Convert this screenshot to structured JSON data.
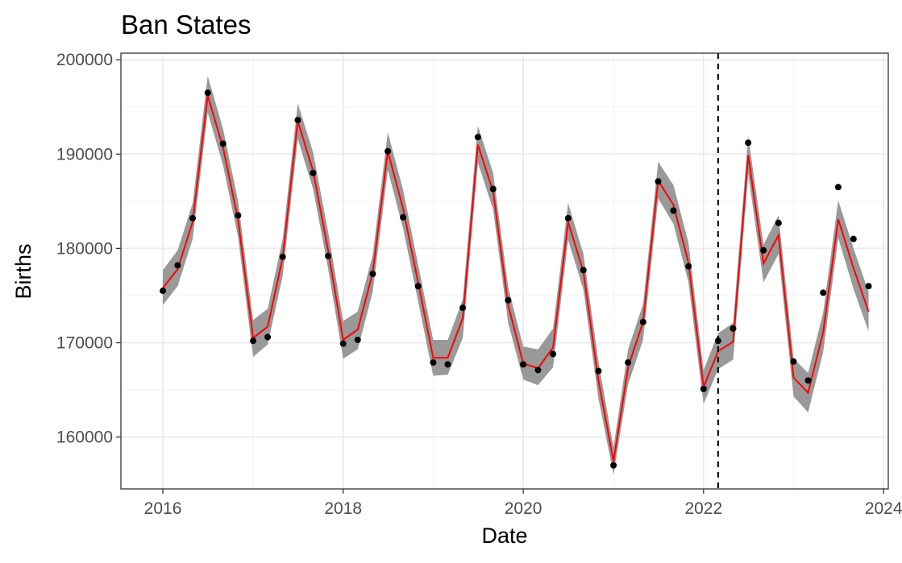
{
  "chart_data": {
    "type": "line",
    "title": "Ban States",
    "xlabel": "Date",
    "ylabel": "Births",
    "x_ticks": [
      "2016",
      "2018",
      "2020",
      "2022",
      "2024"
    ],
    "y_ticks": [
      "160000",
      "170000",
      "180000",
      "190000",
      "200000"
    ],
    "xlim": [
      "2015-07-15",
      "2024-01-20"
    ],
    "ylim": [
      154500,
      200700
    ],
    "grid": true,
    "vline": {
      "date": "2022-03-01",
      "style": "dashed"
    },
    "colors": {
      "points": "#000000",
      "fit_line": "#ff0000",
      "ribbon": "#999999",
      "vline": "#000000"
    },
    "dates": [
      "2016-01-01",
      "2016-03-01",
      "2016-05-01",
      "2016-07-01",
      "2016-09-01",
      "2016-11-01",
      "2017-01-01",
      "2017-03-01",
      "2017-05-01",
      "2017-07-01",
      "2017-09-01",
      "2017-11-01",
      "2018-01-01",
      "2018-03-01",
      "2018-05-01",
      "2018-07-01",
      "2018-09-01",
      "2018-11-01",
      "2019-01-01",
      "2019-03-01",
      "2019-05-01",
      "2019-07-01",
      "2019-09-01",
      "2019-11-01",
      "2020-01-01",
      "2020-03-01",
      "2020-05-01",
      "2020-07-01",
      "2020-09-01",
      "2020-11-01",
      "2021-01-01",
      "2021-03-01",
      "2021-05-01",
      "2021-07-01",
      "2021-09-01",
      "2021-11-01",
      "2022-01-01",
      "2022-03-01",
      "2022-05-01",
      "2022-07-01",
      "2022-09-01",
      "2022-11-01",
      "2023-01-01",
      "2023-03-01",
      "2023-05-01",
      "2023-07-01",
      "2023-09-01",
      "2023-11-01"
    ],
    "series": [
      {
        "type": "scatter",
        "values": [
          175500,
          178200,
          183200,
          196500,
          191100,
          183500,
          170200,
          170600,
          179100,
          193600,
          188000,
          179200,
          169900,
          170300,
          177300,
          190300,
          183300,
          176000,
          167900,
          167700,
          173700,
          191800,
          186300,
          174500,
          167700,
          167100,
          168800,
          183200,
          177700,
          167000,
          157000,
          167900,
          172200,
          187100,
          184000,
          178100,
          165100,
          170200,
          171500,
          191200,
          179800,
          182700,
          168000,
          166000,
          175300,
          186500,
          181000,
          176000
        ]
      },
      {
        "type": "line",
        "values": [
          175800,
          177800,
          182800,
          196200,
          190700,
          183000,
          170500,
          171700,
          179000,
          193500,
          188200,
          179800,
          170300,
          171400,
          177400,
          190300,
          184200,
          176400,
          168400,
          168400,
          172600,
          191000,
          186000,
          174000,
          167800,
          167300,
          169500,
          182800,
          177500,
          166000,
          157400,
          167400,
          172200,
          187200,
          184600,
          178500,
          165300,
          169100,
          170100,
          189900,
          178400,
          181400,
          166300,
          164700,
          171100,
          183100,
          177900,
          173300
        ]
      },
      {
        "type": "ribbon",
        "lower": [
          174000,
          176000,
          181000,
          194400,
          188800,
          181200,
          168500,
          169800,
          177100,
          191600,
          186300,
          177900,
          168300,
          169300,
          175400,
          188300,
          182100,
          174400,
          166500,
          166600,
          170500,
          189100,
          184100,
          172100,
          166100,
          165500,
          167400,
          180900,
          175600,
          164100,
          156000,
          165600,
          170300,
          185300,
          182600,
          176400,
          163500,
          167200,
          168200,
          187900,
          176400,
          179400,
          164300,
          162600,
          169000,
          181100,
          175700,
          171200
        ],
        "upper": [
          177700,
          179800,
          184800,
          198300,
          192700,
          185000,
          172400,
          173600,
          181000,
          195400,
          190200,
          181800,
          172300,
          173300,
          179300,
          192300,
          186200,
          178300,
          170300,
          170300,
          174600,
          193000,
          188000,
          175900,
          169600,
          169300,
          171500,
          184800,
          179400,
          168000,
          158900,
          169300,
          174100,
          189200,
          186700,
          180600,
          167100,
          171000,
          172100,
          191900,
          180400,
          183500,
          168300,
          166800,
          173200,
          185100,
          180000,
          175400
        ]
      }
    ]
  }
}
